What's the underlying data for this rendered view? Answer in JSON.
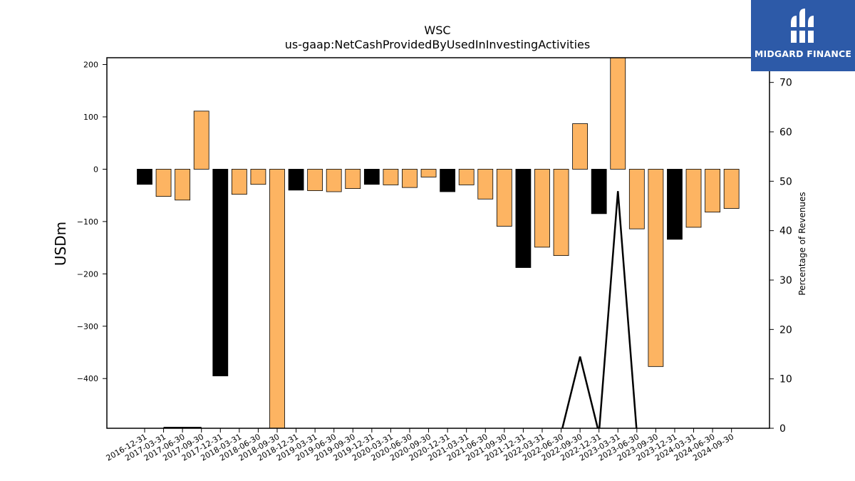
{
  "chart_data": {
    "type": "bar",
    "title": "WSC",
    "subtitle": "us-gaap:NetCashProvidedByUsedInInvestingActivities",
    "ylabel": "USDm",
    "y2label": "Percentage of Revenues",
    "ylim": [
      -495,
      213
    ],
    "y2lim": [
      0,
      75
    ],
    "yticks": [
      "200",
      "100",
      "0",
      "−100",
      "−200",
      "−300",
      "−400"
    ],
    "y2ticks": [
      "70",
      "60",
      "50",
      "40",
      "30",
      "20",
      "10",
      "0"
    ],
    "categories": [
      "2016-12-31",
      "2017-03-31",
      "2017-06-30",
      "2017-09-30",
      "2017-12-31",
      "2018-03-31",
      "2018-06-30",
      "2018-09-30",
      "2018-12-31",
      "2019-03-31",
      "2019-06-30",
      "2019-09-30",
      "2019-12-31",
      "2020-03-31",
      "2020-06-30",
      "2020-09-30",
      "2020-12-31",
      "2021-03-31",
      "2021-06-30",
      "2021-09-30",
      "2021-12-31",
      "2022-03-31",
      "2022-06-30",
      "2022-09-30",
      "2022-12-31",
      "2023-03-31",
      "2023-06-30",
      "2023-09-30",
      "2023-12-31",
      "2024-03-31",
      "2024-06-30",
      "2024-09-30"
    ],
    "values": [
      -29,
      -52,
      -59,
      111,
      -395,
      -48,
      -29,
      -500,
      -40,
      -41,
      -43,
      -37,
      -29,
      -30,
      -35,
      -15,
      -43,
      -30,
      -57,
      -109,
      -188,
      -149,
      -165,
      87,
      -85,
      215,
      -114,
      -377,
      -134,
      -111,
      -82,
      -75
    ],
    "bar_colors": [
      "#000000",
      "#fdb462",
      "#fdb462",
      "#fdb462",
      "#000000",
      "#fdb462",
      "#fdb462",
      "#fdb462",
      "#000000",
      "#fdb462",
      "#fdb462",
      "#fdb462",
      "#000000",
      "#fdb462",
      "#fdb462",
      "#fdb462",
      "#000000",
      "#fdb462",
      "#fdb462",
      "#fdb462",
      "#000000",
      "#fdb462",
      "#fdb462",
      "#fdb462",
      "#000000",
      "#fdb462",
      "#fdb462",
      "#fdb462",
      "#000000",
      "#fdb462",
      "#fdb462",
      "#fdb462"
    ],
    "line_series": {
      "name": "Percentage of Revenues",
      "values": [
        null,
        0.1,
        0.1,
        0.1,
        null,
        null,
        null,
        null,
        null,
        null,
        null,
        null,
        null,
        null,
        null,
        null,
        null,
        null,
        null,
        null,
        null,
        null,
        -1,
        14.5,
        -1,
        48,
        -1,
        null,
        null,
        null,
        null,
        null
      ],
      "color": "#000000"
    }
  },
  "logo": {
    "text": "MIDGARD FINANCE",
    "colors": {
      "background": "#2d5aa8",
      "foreground": "#ffffff"
    }
  }
}
